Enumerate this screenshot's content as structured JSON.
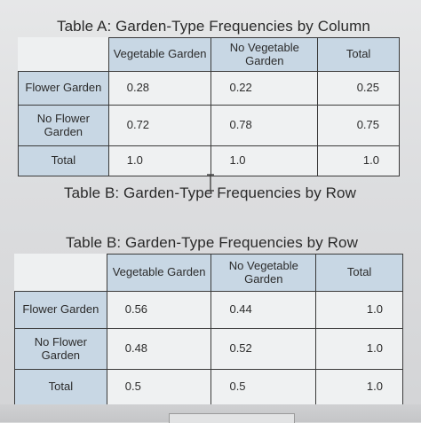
{
  "table_a": {
    "title": "Table A: Garden-Type Frequencies by Column",
    "columns": [
      "Vegetable Garden",
      "No Vegetable Garden",
      "Total"
    ],
    "rows": [
      {
        "label": "Flower Garden",
        "values": [
          "0.28",
          "0.22",
          "0.25"
        ]
      },
      {
        "label": "No Flower Garden",
        "values": [
          "0.72",
          "0.78",
          "0.75"
        ]
      },
      {
        "label": "Total",
        "values": [
          "1.0",
          "1.0",
          "1.0"
        ]
      }
    ]
  },
  "caption_b": "Table B: Garden-Type Frequencies by Row",
  "table_b": {
    "title": "Table B: Garden-Type Frequencies by Row",
    "columns": [
      "Vegetable Garden",
      "No Vegetable Garden",
      "Total"
    ],
    "rows": [
      {
        "label": "Flower Garden",
        "values": [
          "0.56",
          "0.44",
          "1.0"
        ]
      },
      {
        "label": "No Flower Garden",
        "values": [
          "0.48",
          "0.52",
          "1.0"
        ]
      },
      {
        "label": "Total",
        "values": [
          "0.5",
          "0.5",
          "1.0"
        ]
      }
    ]
  },
  "icons": {
    "cursor": "text-cursor-icon"
  }
}
